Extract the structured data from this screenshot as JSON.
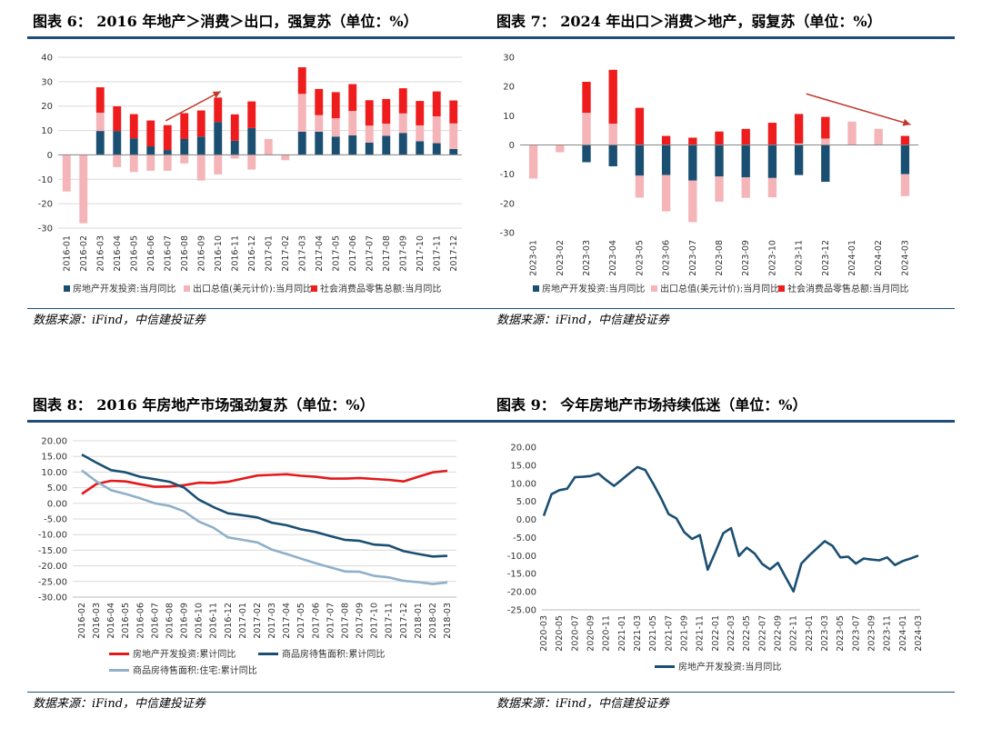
{
  "panels": [
    {
      "title": "图表 6：  2016 年地产＞消费＞出口，强复苏（单位：%）",
      "source": "数据来源：iFind，中信建投证券"
    },
    {
      "title": "图表 7：  2024 年出口＞消费＞地产，弱复苏（单位：%）",
      "source": "数据来源：iFind，中信建投证券"
    },
    {
      "title": "图表 8：  2016 年房地产市场强劲复苏（单位：%）",
      "source": "数据来源：iFind，中信建投证券"
    },
    {
      "title": "图表 9：  今年房地产市场持续低迷（单位：%）",
      "source": "数据来源：iFind，中信建投证券"
    }
  ],
  "colors": {
    "navy": "#1b4f72",
    "pink": "#f4b4b8",
    "red": "#ee1c1c",
    "lightblue": "#8fb0c8",
    "darkred": "#c0392b",
    "grid": "#d9d9d9"
  },
  "chart_data": [
    {
      "type": "bar",
      "stacked": "positive-negative",
      "categories": [
        "2016-01",
        "2016-02",
        "2016-03",
        "2016-04",
        "2016-05",
        "2016-06",
        "2016-07",
        "2016-08",
        "2016-09",
        "2016-10",
        "2016-11",
        "2016-12",
        "2017-01",
        "2017-02",
        "2017-03",
        "2017-04",
        "2017-05",
        "2017-06",
        "2017-07",
        "2017-08",
        "2017-09",
        "2017-10",
        "2017-11",
        "2017-12"
      ],
      "series": [
        {
          "name": "房地产开发投资:当月同比",
          "color": "#1b4f72",
          "values": [
            null,
            null,
            9.8,
            9.8,
            6.8,
            3.5,
            2.0,
            6.5,
            7.5,
            13.5,
            5.8,
            11.0,
            null,
            null,
            9.5,
            9.5,
            7.5,
            8.0,
            5.0,
            7.8,
            9.0,
            5.6,
            4.8,
            2.4
          ]
        },
        {
          "name": "出口总值(美元计价):当月同比",
          "color": "#f4b4b8",
          "values": [
            -15.0,
            -28.0,
            7.5,
            -5.0,
            -7.0,
            -6.5,
            -6.5,
            -3.5,
            -10.5,
            -8.0,
            -1.5,
            -6.0,
            6.5,
            -2.2,
            15.5,
            6.8,
            7.5,
            10.0,
            7.0,
            5.0,
            8.0,
            6.5,
            11.0,
            10.5
          ]
        },
        {
          "name": "社会消费品零售总额:当月同比",
          "color": "#ee1c1c",
          "values": [
            null,
            null,
            10.4,
            10.1,
            9.9,
            10.6,
            10.2,
            10.6,
            10.7,
            10.0,
            10.8,
            10.9,
            null,
            null,
            10.9,
            10.7,
            10.7,
            11.0,
            10.4,
            10.1,
            10.3,
            10.0,
            10.2,
            9.4
          ]
        }
      ],
      "ylim": [
        -30,
        40
      ],
      "yticks": [
        -30,
        -20,
        -10,
        0,
        10,
        20,
        30,
        40
      ],
      "legend": "bottom",
      "grid": true,
      "annotation": "upward arrow"
    },
    {
      "type": "bar",
      "stacked": "positive-negative",
      "categories": [
        "2023-01",
        "2023-02",
        "2023-03",
        "2023-04",
        "2023-05",
        "2023-06",
        "2023-07",
        "2023-08",
        "2023-09",
        "2023-10",
        "2023-11",
        "2023-12",
        "2024-01",
        "2024-02",
        "2024-03"
      ],
      "series": [
        {
          "name": "房地产开发投资:当月同比",
          "color": "#1b4f72",
          "values": [
            null,
            null,
            -5.9,
            -7.3,
            -10.5,
            -10.3,
            -12.2,
            -10.8,
            -11.1,
            -11.3,
            -10.3,
            -12.6,
            null,
            null,
            -10.0
          ]
        },
        {
          "name": "出口总值(美元计价):当月同比",
          "color": "#f4b4b8",
          "values": [
            -11.5,
            -2.5,
            11.0,
            7.3,
            -7.5,
            -12.4,
            -14.2,
            -8.6,
            -7.0,
            -6.6,
            0.5,
            2.2,
            8.0,
            5.5,
            -7.5
          ]
        },
        {
          "name": "社会消费品零售总额:当月同比",
          "color": "#ee1c1c",
          "values": [
            null,
            null,
            10.6,
            18.4,
            12.7,
            3.1,
            2.5,
            4.6,
            5.5,
            7.6,
            10.1,
            7.4,
            null,
            null,
            3.1
          ]
        }
      ],
      "ylim": [
        -30,
        30
      ],
      "yticks": [
        -30,
        -20,
        -10,
        0,
        10,
        20,
        30
      ],
      "legend": "bottom",
      "grid": false,
      "annotation": "downward arrow"
    },
    {
      "type": "line",
      "categories": [
        "2016-02",
        "2016-03",
        "2016-04",
        "2016-05",
        "2016-06",
        "2016-07",
        "2016-08",
        "2016-09",
        "2016-10",
        "2016-11",
        "2016-12",
        "2017-01",
        "2017-02",
        "2017-03",
        "2017-04",
        "2017-05",
        "2017-06",
        "2017-07",
        "2017-08",
        "2017-09",
        "2017-10",
        "2017-11",
        "2017-12",
        "2018-01",
        "2018-02",
        "2018-03"
      ],
      "series": [
        {
          "name": "房地产开发投资:累计同比",
          "color": "#e31a1c",
          "values": [
            3.0,
            6.2,
            7.2,
            7.0,
            6.1,
            5.3,
            5.4,
            5.8,
            6.6,
            6.5,
            6.9,
            7.9,
            8.9,
            9.1,
            9.3,
            8.8,
            8.5,
            7.9,
            7.9,
            8.1,
            7.8,
            7.5,
            7.0,
            8.5,
            9.9,
            10.4
          ]
        },
        {
          "name": "商品房待售面积:累计同比",
          "color": "#1b4f72",
          "values": [
            15.6,
            13.0,
            10.6,
            9.9,
            8.5,
            7.7,
            6.9,
            5.0,
            1.2,
            -1.2,
            -3.2,
            -3.8,
            -4.5,
            -6.2,
            -7.0,
            -8.3,
            -9.2,
            -10.5,
            -11.7,
            -12.0,
            -13.2,
            -13.5,
            -15.3,
            -16.2,
            -17.0,
            -16.8
          ]
        },
        {
          "name": "商品房待售面积:住宅:累计同比",
          "color": "#8fb0c8",
          "values": [
            10.5,
            7.0,
            4.2,
            3.0,
            1.6,
            0.0,
            -0.8,
            -2.6,
            -5.8,
            -7.8,
            -10.9,
            -11.7,
            -12.5,
            -14.8,
            -16.2,
            -17.7,
            -19.2,
            -20.5,
            -21.8,
            -21.9,
            -23.2,
            -23.7,
            -24.8,
            -25.2,
            -25.8,
            -25.3
          ]
        }
      ],
      "ylim": [
        -30,
        20
      ],
      "yticks": [
        -30,
        -25,
        -20,
        -15,
        -10,
        -5,
        0,
        5,
        10,
        15,
        20
      ],
      "ytick_labels": [
        "-30.00",
        "-25.00",
        "-20.00",
        "-15.00",
        "-10.00",
        "-5.00",
        "0.00",
        "5.00",
        "10.00",
        "15.00",
        "20.00"
      ],
      "legend": "bottom",
      "grid": true
    },
    {
      "type": "line",
      "categories": [
        "2020-03",
        "2020-04",
        "2020-05",
        "2020-06",
        "2020-07",
        "2020-08",
        "2020-09",
        "2020-10",
        "2020-11",
        "2020-12",
        "2021-01",
        "2021-02",
        "2021-03",
        "2021-04",
        "2021-05",
        "2021-06",
        "2021-07",
        "2021-08",
        "2021-09",
        "2021-10",
        "2021-11",
        "2021-12",
        "2022-01",
        "2022-02",
        "2022-03",
        "2022-04",
        "2022-05",
        "2022-06",
        "2022-07",
        "2022-08",
        "2022-09",
        "2022-10",
        "2022-11",
        "2022-12",
        "2023-01",
        "2023-02",
        "2023-03",
        "2023-04",
        "2023-05",
        "2023-06",
        "2023-07",
        "2023-08",
        "2023-09",
        "2023-10",
        "2023-11",
        "2023-12",
        "2024-01",
        "2024-02",
        "2024-03"
      ],
      "xtick_labels": [
        "2020-03",
        "2020-05",
        "2020-07",
        "2020-09",
        "2020-11",
        "2021-01",
        "2021-03",
        "2021-05",
        "2021-07",
        "2021-09",
        "2021-11",
        "2022-01",
        "2022-03",
        "2022-05",
        "2022-07",
        "2022-09",
        "2022-11",
        "2023-01",
        "2023-03",
        "2023-05",
        "2023-07",
        "2023-09",
        "2023-11",
        "2024-01",
        "2024-03"
      ],
      "series": [
        {
          "name": "房地产开发投资:当月同比",
          "color": "#1b4f72",
          "values": [
            1.0,
            7.0,
            8.1,
            8.5,
            11.7,
            11.8,
            12.0,
            12.7,
            10.9,
            9.3,
            11.0,
            12.8,
            14.5,
            13.7,
            10.0,
            6.0,
            1.5,
            0.3,
            -3.5,
            -5.4,
            -4.3,
            -13.9,
            -9.0,
            -3.8,
            -2.4,
            -10.1,
            -7.8,
            -9.4,
            -12.3,
            -13.8,
            -12.0,
            -16.0,
            -19.9,
            -12.2,
            -10.0,
            -8.0,
            -6.0,
            -7.3,
            -10.5,
            -10.3,
            -12.2,
            -10.8,
            -11.1,
            -11.3,
            -10.5,
            -12.6,
            -11.5,
            -10.8,
            -10.0
          ]
        }
      ],
      "ylim": [
        -25,
        20
      ],
      "yticks": [
        -25,
        -20,
        -15,
        -10,
        -5,
        0,
        5,
        10,
        15,
        20
      ],
      "ytick_labels": [
        "-25.00",
        "-20.00",
        "-15.00",
        "-10.00",
        "-5.00",
        "0.00",
        "5.00",
        "10.00",
        "15.00",
        "20.00"
      ],
      "legend": "bottom",
      "grid": false
    }
  ]
}
